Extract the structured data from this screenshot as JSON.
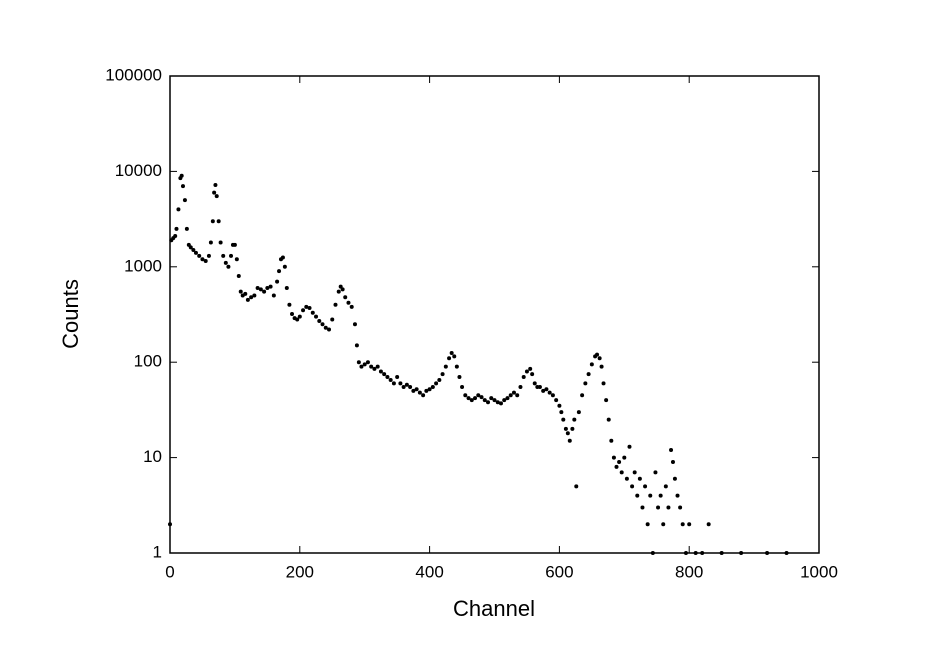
{
  "chart_data": {
    "type": "scatter",
    "xlabel": "Channel",
    "ylabel": "Counts",
    "color": "#000000",
    "log_y": true,
    "xlim": [
      0,
      1000
    ],
    "xticks": [
      0,
      200,
      400,
      600,
      800,
      1000
    ],
    "ylim": [
      1,
      100000
    ],
    "yticks": [
      1,
      10,
      100,
      1000,
      10000,
      100000
    ],
    "x": [
      0,
      2,
      5,
      8,
      10,
      13,
      16,
      18,
      20,
      23,
      26,
      29,
      32,
      36,
      40,
      45,
      50,
      55,
      60,
      63,
      66,
      68,
      70,
      72,
      75,
      78,
      82,
      86,
      90,
      94,
      97,
      100,
      103,
      106,
      109,
      112,
      116,
      120,
      125,
      130,
      135,
      140,
      145,
      150,
      155,
      160,
      165,
      168,
      171,
      174,
      177,
      180,
      184,
      188,
      192,
      196,
      200,
      205,
      210,
      215,
      220,
      225,
      230,
      235,
      240,
      245,
      250,
      255,
      260,
      263,
      266,
      270,
      275,
      280,
      285,
      288,
      291,
      295,
      300,
      305,
      310,
      315,
      320,
      325,
      330,
      335,
      340,
      345,
      350,
      355,
      360,
      365,
      370,
      375,
      380,
      385,
      390,
      395,
      400,
      405,
      410,
      415,
      420,
      425,
      430,
      434,
      438,
      442,
      446,
      450,
      455,
      460,
      465,
      470,
      475,
      480,
      485,
      490,
      495,
      500,
      505,
      510,
      515,
      520,
      525,
      530,
      535,
      540,
      545,
      550,
      555,
      558,
      562,
      566,
      570,
      575,
      580,
      585,
      590,
      595,
      600,
      603,
      606,
      610,
      613,
      616,
      620,
      623,
      626,
      630,
      635,
      640,
      645,
      650,
      655,
      658,
      662,
      665,
      668,
      672,
      676,
      680,
      684,
      688,
      692,
      696,
      700,
      704,
      708,
      712,
      716,
      720,
      724,
      728,
      732,
      736,
      740,
      744,
      748,
      752,
      756,
      760,
      764,
      768,
      772,
      775,
      778,
      782,
      786,
      790,
      795,
      800,
      810,
      820,
      830,
      850,
      880,
      920,
      950
    ],
    "values": [
      2,
      1900,
      2000,
      2100,
      2500,
      4000,
      8500,
      9000,
      7000,
      5000,
      2500,
      1700,
      1600,
      1500,
      1400,
      1300,
      1200,
      1150,
      1300,
      1800,
      3000,
      6000,
      7200,
      5500,
      3000,
      1800,
      1300,
      1100,
      1000,
      1300,
      1700,
      1700,
      1200,
      800,
      550,
      500,
      520,
      450,
      480,
      500,
      600,
      580,
      550,
      600,
      620,
      500,
      700,
      900,
      1200,
      1250,
      1000,
      600,
      400,
      320,
      290,
      280,
      300,
      350,
      380,
      370,
      330,
      300,
      270,
      250,
      230,
      220,
      280,
      400,
      550,
      620,
      580,
      480,
      420,
      380,
      250,
      150,
      100,
      90,
      95,
      100,
      90,
      85,
      90,
      80,
      75,
      70,
      65,
      60,
      70,
      60,
      55,
      58,
      55,
      50,
      52,
      48,
      45,
      50,
      52,
      55,
      60,
      65,
      75,
      90,
      110,
      125,
      115,
      90,
      70,
      55,
      45,
      42,
      40,
      42,
      45,
      43,
      40,
      38,
      42,
      40,
      38,
      37,
      40,
      42,
      45,
      48,
      45,
      55,
      70,
      80,
      85,
      75,
      60,
      55,
      55,
      50,
      52,
      48,
      45,
      40,
      35,
      30,
      25,
      20,
      18,
      15,
      20,
      25,
      5,
      30,
      45,
      60,
      75,
      95,
      115,
      120,
      110,
      90,
      60,
      40,
      25,
      15,
      10,
      8,
      9,
      7,
      10,
      6,
      13,
      5,
      7,
      4,
      6,
      3,
      5,
      2,
      4,
      1,
      7,
      3,
      4,
      2,
      5,
      3,
      12,
      9,
      6,
      4,
      3,
      2,
      1,
      2,
      1,
      1,
      2,
      1,
      1,
      1,
      1
    ]
  }
}
